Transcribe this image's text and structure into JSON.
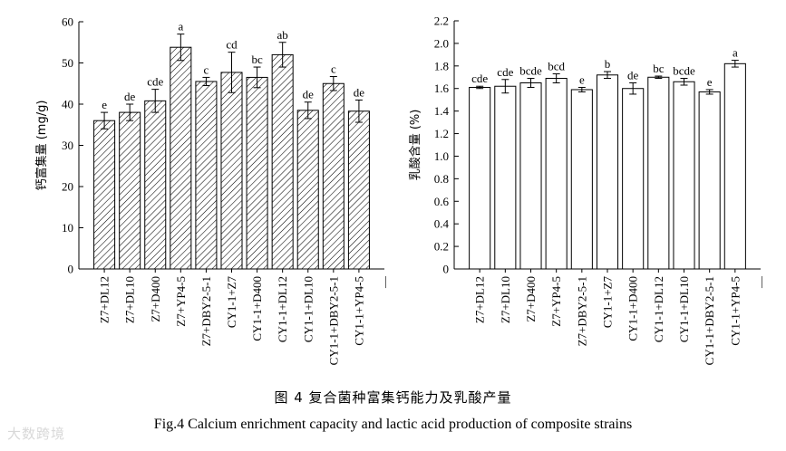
{
  "chart_data": [
    {
      "type": "bar",
      "ylabel": "钙富集量 (mg/g)",
      "ylim": [
        0,
        60
      ],
      "yticks": [
        0,
        10,
        20,
        30,
        40,
        50,
        60
      ],
      "bar_style": "hatched",
      "categories": [
        "Z7+DL12",
        "Z7+DL10",
        "Z7+D400",
        "Z7+YP4-5",
        "Z7+DBY2-5-1",
        "CY1-1+Z7",
        "CY1-1+D400",
        "CY1-1+DL12",
        "CY1-1+DL10",
        "CY1-1+DBY2-5-1",
        "CY1-1+YP4-5"
      ],
      "values": [
        36.0,
        38.0,
        40.8,
        53.8,
        45.5,
        47.7,
        46.5,
        52.0,
        38.5,
        45.0,
        38.3
      ],
      "errors": [
        2.0,
        2.0,
        2.8,
        3.2,
        1.0,
        4.9,
        2.5,
        3.0,
        2.0,
        1.7,
        2.7
      ],
      "annotations": [
        "e",
        "de",
        "cde",
        "a",
        "c",
        "cd",
        "bc",
        "ab",
        "de",
        "c",
        "de"
      ],
      "extra_tick_label": "—"
    },
    {
      "type": "bar",
      "ylabel": "乳酸含量 (%)",
      "ylim": [
        0,
        2.2
      ],
      "yticks": [
        "0",
        "0.2",
        "0.4",
        "0.6",
        "0.8",
        "1.0",
        "1.2",
        "1.4",
        "1.6",
        "1.8",
        "2.0",
        "2.2"
      ],
      "bar_style": "white",
      "categories": [
        "Z7+DL12",
        "Z7+DL10",
        "Z7+D400",
        "Z7+YP4-5",
        "Z7+DBY2-5-1",
        "CY1-1+Z7",
        "CY1-1+D400",
        "CY1-1+DL12",
        "CY1-1+DL10",
        "CY1-1+DBY2-5-1",
        "CY1-1+YP4-5"
      ],
      "values": [
        1.61,
        1.62,
        1.65,
        1.69,
        1.59,
        1.72,
        1.6,
        1.7,
        1.66,
        1.57,
        1.82
      ],
      "errors": [
        0.01,
        0.06,
        0.04,
        0.04,
        0.02,
        0.03,
        0.05,
        0.01,
        0.03,
        0.02,
        0.03
      ],
      "annotations": [
        "cde",
        "cde",
        "bcde",
        "bcd",
        "e",
        "b",
        "de",
        "bc",
        "bcde",
        "e",
        "a"
      ],
      "extra_tick_label": "—"
    }
  ],
  "caption": {
    "cn": "图 4    复合菌种富集钙能力及乳酸产量",
    "en": "Fig.4    Calcium enrichment capacity and lactic acid production of composite strains"
  },
  "watermark": "大数跨境"
}
